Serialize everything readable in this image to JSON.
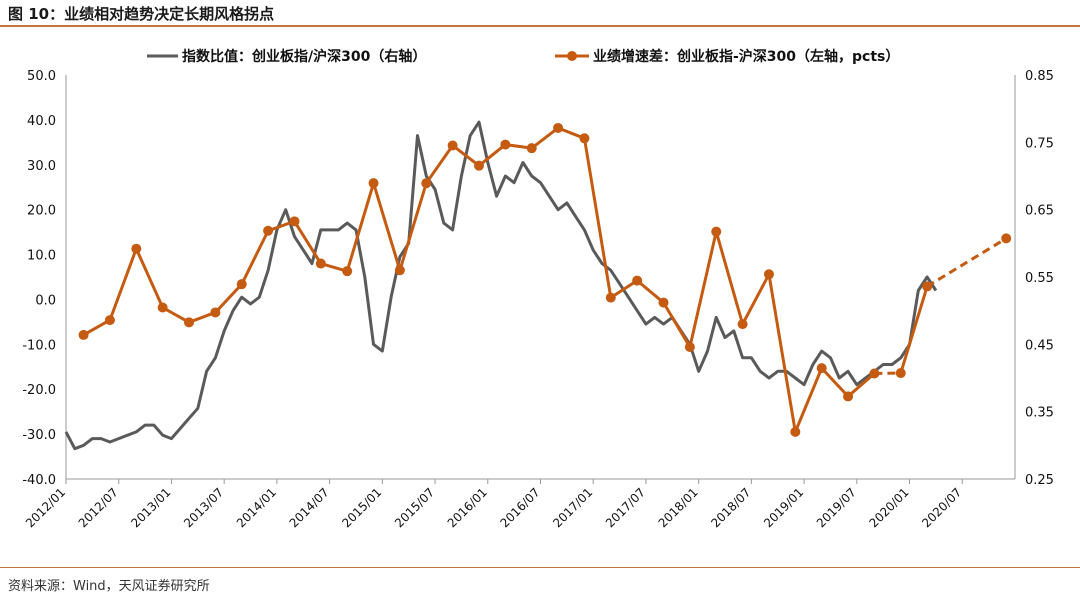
{
  "header": {
    "title": "图 10：业绩相对趋势决定长期风格拐点"
  },
  "footer": {
    "source": "资料来源：Wind，天风证券研究所"
  },
  "colors": {
    "index_line": "#5a5a5a",
    "growth_line": "#c55a11",
    "accent_rule": "#c0733c"
  },
  "chart_data": {
    "type": "line",
    "legend_position": "top",
    "grid": false,
    "x_labels": [
      "2012/01",
      "2012/07",
      "2013/01",
      "2013/07",
      "2014/01",
      "2014/07",
      "2015/01",
      "2015/07",
      "2016/01",
      "2016/07",
      "2017/01",
      "2017/07",
      "2018/01",
      "2018/07",
      "2019/01",
      "2019/07",
      "2020/01",
      "2020/07"
    ],
    "xlim": [
      "2012/01",
      "2021/01"
    ],
    "left_axis": {
      "ylim": [
        -40,
        50
      ],
      "ticks": [
        "50.0",
        "40.0",
        "30.0",
        "20.0",
        "10.0",
        "0.0",
        "-10.0",
        "-20.0",
        "-30.0",
        "-40.0"
      ]
    },
    "right_axis": {
      "ylim": [
        0.25,
        0.85
      ],
      "ticks": [
        "0.85",
        "0.75",
        "0.65",
        "0.55",
        "0.45",
        "0.35",
        "0.25"
      ]
    },
    "series": [
      {
        "name": "指数比值：创业板指/沪深300（右轴）",
        "axis": "right",
        "marker": "none",
        "points": [
          [
            "2012/01",
            0.32
          ],
          [
            "2012/02",
            0.295
          ],
          [
            "2012/03",
            0.3
          ],
          [
            "2012/04",
            0.31
          ],
          [
            "2012/05",
            0.31
          ],
          [
            "2012/06",
            0.305
          ],
          [
            "2012/07",
            0.31
          ],
          [
            "2012/08",
            0.315
          ],
          [
            "2012/09",
            0.32
          ],
          [
            "2012/10",
            0.33
          ],
          [
            "2012/11",
            0.33
          ],
          [
            "2012/12",
            0.315
          ],
          [
            "2013/01",
            0.31
          ],
          [
            "2013/02",
            0.325
          ],
          [
            "2013/03",
            0.34
          ],
          [
            "2013/04",
            0.355
          ],
          [
            "2013/05",
            0.41
          ],
          [
            "2013/06",
            0.43
          ],
          [
            "2013/07",
            0.47
          ],
          [
            "2013/08",
            0.5
          ],
          [
            "2013/09",
            0.52
          ],
          [
            "2013/10",
            0.51
          ],
          [
            "2013/11",
            0.52
          ],
          [
            "2013/12",
            0.56
          ],
          [
            "2014/01",
            0.62
          ],
          [
            "2014/02",
            0.65
          ],
          [
            "2014/03",
            0.61
          ],
          [
            "2014/04",
            0.59
          ],
          [
            "2014/05",
            0.57
          ],
          [
            "2014/06",
            0.62
          ],
          [
            "2014/07",
            0.62
          ],
          [
            "2014/08",
            0.62
          ],
          [
            "2014/09",
            0.63
          ],
          [
            "2014/10",
            0.62
          ],
          [
            "2014/11",
            0.55
          ],
          [
            "2014/12",
            0.45
          ],
          [
            "2015/01",
            0.44
          ],
          [
            "2015/02",
            0.52
          ],
          [
            "2015/03",
            0.58
          ],
          [
            "2015/04",
            0.6
          ],
          [
            "2015/05",
            0.76
          ],
          [
            "2015/06",
            0.7
          ],
          [
            "2015/07",
            0.68
          ],
          [
            "2015/08",
            0.63
          ],
          [
            "2015/09",
            0.62
          ],
          [
            "2015/10",
            0.7
          ],
          [
            "2015/11",
            0.76
          ],
          [
            "2015/12",
            0.78
          ],
          [
            "2016/01",
            0.72
          ],
          [
            "2016/02",
            0.67
          ],
          [
            "2016/03",
            0.7
          ],
          [
            "2016/04",
            0.69
          ],
          [
            "2016/05",
            0.72
          ],
          [
            "2016/06",
            0.7
          ],
          [
            "2016/07",
            0.69
          ],
          [
            "2016/08",
            0.67
          ],
          [
            "2016/09",
            0.65
          ],
          [
            "2016/10",
            0.66
          ],
          [
            "2016/11",
            0.64
          ],
          [
            "2016/12",
            0.62
          ],
          [
            "2017/01",
            0.59
          ],
          [
            "2017/02",
            0.57
          ],
          [
            "2017/03",
            0.56
          ],
          [
            "2017/04",
            0.54
          ],
          [
            "2017/05",
            0.52
          ],
          [
            "2017/06",
            0.5
          ],
          [
            "2017/07",
            0.48
          ],
          [
            "2017/08",
            0.49
          ],
          [
            "2017/09",
            0.48
          ],
          [
            "2017/10",
            0.49
          ],
          [
            "2017/11",
            0.47
          ],
          [
            "2017/12",
            0.45
          ],
          [
            "2018/01",
            0.41
          ],
          [
            "2018/02",
            0.44
          ],
          [
            "2018/03",
            0.49
          ],
          [
            "2018/04",
            0.46
          ],
          [
            "2018/05",
            0.47
          ],
          [
            "2018/06",
            0.43
          ],
          [
            "2018/07",
            0.43
          ],
          [
            "2018/08",
            0.41
          ],
          [
            "2018/09",
            0.4
          ],
          [
            "2018/10",
            0.41
          ],
          [
            "2018/11",
            0.41
          ],
          [
            "2018/12",
            0.4
          ],
          [
            "2019/01",
            0.39
          ],
          [
            "2019/02",
            0.42
          ],
          [
            "2019/03",
            0.44
          ],
          [
            "2019/04",
            0.43
          ],
          [
            "2019/05",
            0.4
          ],
          [
            "2019/06",
            0.41
          ],
          [
            "2019/07",
            0.39
          ],
          [
            "2019/08",
            0.4
          ],
          [
            "2019/09",
            0.41
          ],
          [
            "2019/10",
            0.42
          ],
          [
            "2019/11",
            0.42
          ],
          [
            "2019/12",
            0.43
          ],
          [
            "2020/01",
            0.45
          ],
          [
            "2020/02",
            0.53
          ],
          [
            "2020/03",
            0.55
          ],
          [
            "2020/04",
            0.53
          ]
        ]
      },
      {
        "name": "业绩增速差：创业板指-沪深300（左轴，pcts）",
        "axis": "left",
        "marker": "circle",
        "points": [
          [
            "2012/03",
            -7.9
          ],
          [
            "2012/06",
            -4.6
          ],
          [
            "2012/09",
            11.3
          ],
          [
            "2012/12",
            -1.8
          ],
          [
            "2013/03",
            -5.1
          ],
          [
            "2013/06",
            -2.9
          ],
          [
            "2013/09",
            3.4
          ],
          [
            "2013/12",
            15.3
          ],
          [
            "2014/03",
            17.4
          ],
          [
            "2014/06",
            8.0
          ],
          [
            "2014/09",
            6.3
          ],
          [
            "2014/12",
            25.9
          ],
          [
            "2015/03",
            6.5
          ],
          [
            "2015/06",
            25.9
          ],
          [
            "2015/09",
            34.3
          ],
          [
            "2015/12",
            29.8
          ],
          [
            "2016/03",
            34.5
          ],
          [
            "2016/06",
            33.7
          ],
          [
            "2016/09",
            38.2
          ],
          [
            "2016/12",
            35.9
          ],
          [
            "2017/03",
            0.4
          ],
          [
            "2017/06",
            4.2
          ],
          [
            "2017/09",
            -0.7
          ],
          [
            "2017/12",
            -10.6
          ],
          [
            "2018/03",
            15.1
          ],
          [
            "2018/06",
            -5.5
          ],
          [
            "2018/09",
            5.6
          ],
          [
            "2018/12",
            -29.5
          ],
          [
            "2019/03",
            -15.3
          ],
          [
            "2019/06",
            -21.6
          ],
          [
            "2019/09",
            -16.5
          ],
          [
            "2019/12",
            -16.4
          ],
          [
            "2020/03",
            2.9
          ],
          [
            "2020/12",
            13.6
          ]
        ],
        "dashed_segments": [
          [
            "2019/09",
            "2019/12"
          ],
          [
            "2020/03",
            "2020/12"
          ]
        ]
      }
    ]
  }
}
